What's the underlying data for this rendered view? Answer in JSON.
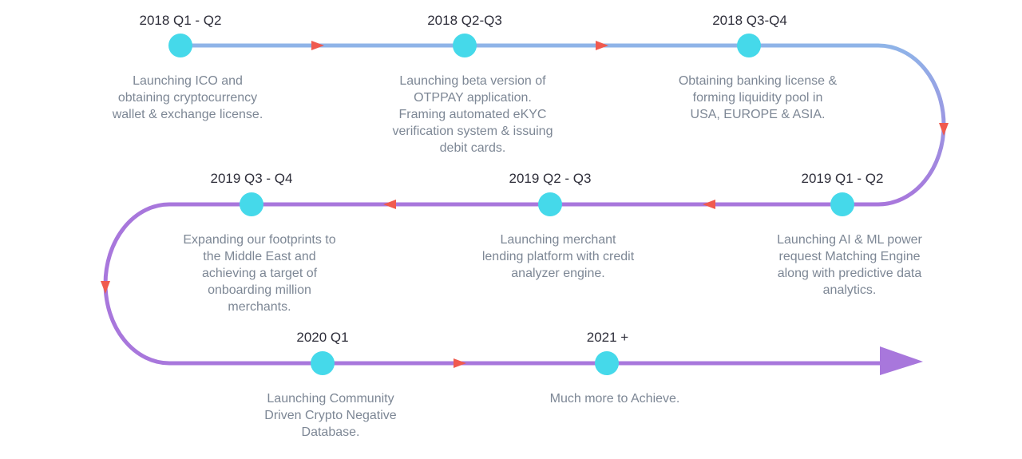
{
  "colors": {
    "row1_line": "#8fb4e8",
    "row2_line": "#a877dc",
    "arrow_marker": "#f05a4f",
    "dot": "#45d9ea",
    "title_text": "#2e2e3a",
    "desc_text": "#7d8795"
  },
  "milestones": [
    {
      "title": "2018 Q1 - Q2",
      "desc": [
        "Launching ICO and",
        "obtaining cryptocurrency",
        "wallet & exchange license."
      ]
    },
    {
      "title": "2018 Q2-Q3",
      "desc": [
        "Launching beta version of",
        "OTPPAY application.",
        "Framing automated eKYC",
        "verification system & issuing",
        "debit cards."
      ]
    },
    {
      "title": "2018 Q3-Q4",
      "desc": [
        "Obtaining banking license &",
        "forming liquidity pool in",
        "USA, EUROPE & ASIA."
      ]
    },
    {
      "title": "2019 Q1 - Q2",
      "desc": [
        "Launching AI & ML power",
        "request Matching Engine",
        "along with predictive data",
        "analytics."
      ]
    },
    {
      "title": "2019 Q2 - Q3",
      "desc": [
        "Launching merchant",
        "lending platform with credit",
        "analyzer engine."
      ]
    },
    {
      "title": "2019 Q3 - Q4",
      "desc": [
        "Expanding our footprints to",
        "the Middle East and",
        "achieving a target of",
        "onboarding million",
        "merchants."
      ]
    },
    {
      "title": "2020 Q1",
      "desc": [
        "Launching Community",
        "Driven Crypto Negative",
        "Database."
      ]
    },
    {
      "title": "2021 +",
      "desc": [
        "Much more to Achieve."
      ]
    }
  ]
}
